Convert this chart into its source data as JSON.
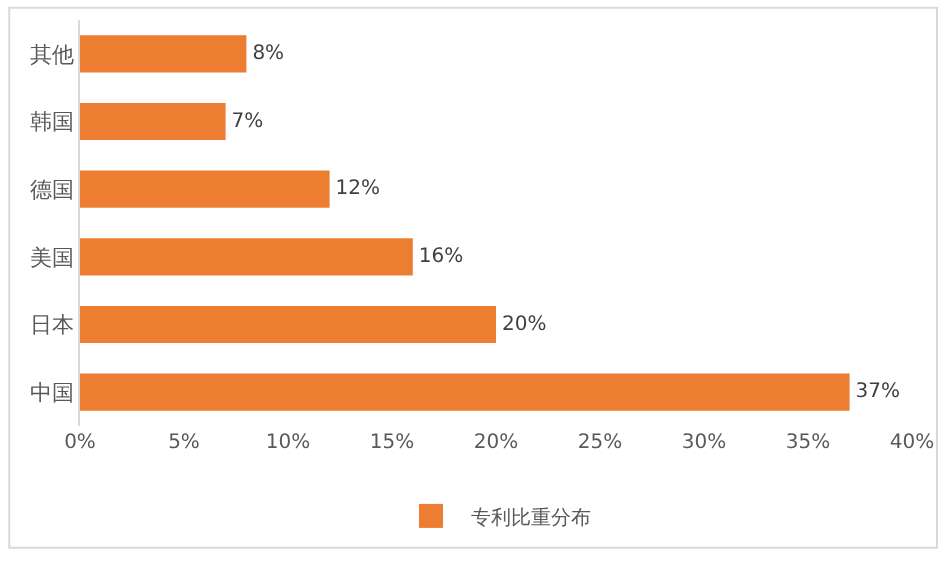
{
  "chart_data": {
    "type": "bar",
    "orientation": "horizontal",
    "categories": [
      "其他",
      "韩国",
      "德国",
      "美国",
      "日本",
      "中国"
    ],
    "series": [
      {
        "name": "专利比重分布",
        "color": "#ed7d31",
        "values": [
          8,
          7,
          12,
          16,
          20,
          37
        ]
      }
    ],
    "value_labels": [
      "8%",
      "7%",
      "12%",
      "16%",
      "20%",
      "37%"
    ],
    "xlim": [
      0,
      40
    ],
    "xticks": [
      {
        "value": 0,
        "label": "0%"
      },
      {
        "value": 5,
        "label": "5%"
      },
      {
        "value": 10,
        "label": "10%"
      },
      {
        "value": 15,
        "label": "15%"
      },
      {
        "value": 20,
        "label": "20%"
      },
      {
        "value": 25,
        "label": "25%"
      },
      {
        "value": 30,
        "label": "30%"
      },
      {
        "value": 35,
        "label": "35%"
      },
      {
        "value": 40,
        "label": "40%"
      }
    ],
    "legend": "bottom"
  }
}
